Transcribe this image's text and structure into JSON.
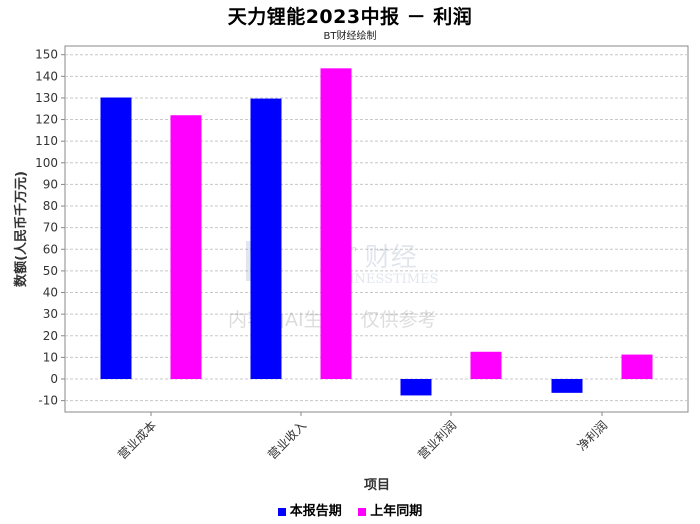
{
  "title": "天力锂能2023中报 － 利润",
  "subtitle": "BT财经绘制",
  "legend": [
    {
      "name": "本报告期",
      "color": "#0000ff"
    },
    {
      "name": "上年同期",
      "color": "#ff00ff"
    }
  ],
  "watermark": {
    "brand": "BT 财经",
    "brand_sub": "BUSINESSTIMES",
    "notice": "内容由AI生成，仅供参考"
  },
  "chart_data": {
    "type": "bar",
    "categories": [
      "营业成本",
      "营业收入",
      "营业利润",
      "净利润"
    ],
    "series": [
      {
        "name": "本报告期",
        "color": "#0000ff",
        "values": [
          130.2,
          129.7,
          -7.6,
          -6.4
        ]
      },
      {
        "name": "上年同期",
        "color": "#ff00ff",
        "values": [
          122.0,
          143.7,
          12.6,
          11.3
        ]
      }
    ],
    "xlabel": "项目",
    "ylabel": "数额(人民币千万元)",
    "ylim": [
      -15,
      155
    ],
    "yticks": [
      -10,
      0,
      10,
      20,
      30,
      40,
      50,
      60,
      70,
      80,
      90,
      100,
      110,
      120,
      130,
      140,
      150
    ],
    "grid": true,
    "legend_position": "bottom"
  }
}
